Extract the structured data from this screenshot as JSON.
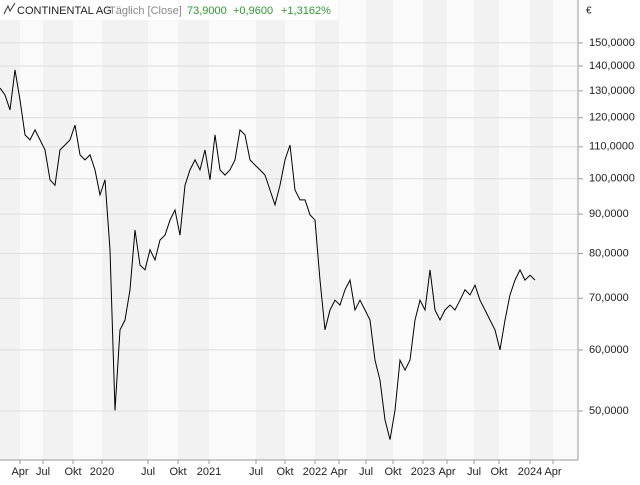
{
  "chart_data": {
    "type": "line",
    "title": "CONTINENTAL AG",
    "subtitle": "Täglich [Close]",
    "last_value": "73,9000",
    "change": "+0,9600",
    "change_percent": "+1,3162%",
    "y_label": "€",
    "y_axis_side": "right",
    "log_y": true,
    "grid": true,
    "xlim": [
      0,
      115.6
    ],
    "xticks": [
      {
        "value": 4,
        "label": "Apr"
      },
      {
        "value": 8.6,
        "label": "Jul"
      },
      {
        "value": 14.6,
        "label": "Okt"
      },
      {
        "value": 20.4,
        "label": "2020"
      },
      {
        "value": 29.6,
        "label": "Jul"
      },
      {
        "value": 35.6,
        "label": "Okt"
      },
      {
        "value": 41.8,
        "label": "2021"
      },
      {
        "value": 51.2,
        "label": "Jul"
      },
      {
        "value": 57,
        "label": "Okt"
      },
      {
        "value": 63,
        "label": "2022"
      },
      {
        "value": 67.8,
        "label": "Apr"
      },
      {
        "value": 73.2,
        "label": "Jul"
      },
      {
        "value": 78.6,
        "label": "Okt"
      },
      {
        "value": 84.6,
        "label": "2023"
      },
      {
        "value": 89.4,
        "label": "Apr"
      },
      {
        "value": 94.8,
        "label": "Jul"
      },
      {
        "value": 99.8,
        "label": "Okt"
      },
      {
        "value": 106,
        "label": "2024"
      },
      {
        "value": 110.6,
        "label": "Apr"
      }
    ],
    "ylim": [
      43.2,
      170.5
    ],
    "yticks": [
      {
        "value": 50,
        "label": "50,0000"
      },
      {
        "value": 60,
        "label": "60,0000"
      },
      {
        "value": 70,
        "label": "70,0000"
      },
      {
        "value": 80,
        "label": "80,0000"
      },
      {
        "value": 90,
        "label": "90,0000"
      },
      {
        "value": 100,
        "label": "100,0000"
      },
      {
        "value": 110,
        "label": "110,0000"
      },
      {
        "value": 120,
        "label": "120,0000"
      },
      {
        "value": 130,
        "label": "130,0000"
      },
      {
        "value": 140,
        "label": "140,0000"
      },
      {
        "value": 150,
        "label": "150,0000"
      }
    ],
    "series": [
      {
        "color": "#000000",
        "x": [
          0,
          1,
          2,
          3,
          4,
          5,
          6,
          7,
          8,
          9,
          10,
          11,
          12,
          13,
          14,
          15,
          16,
          17,
          18,
          19,
          20,
          21,
          22,
          23,
          24,
          25,
          26,
          27,
          28,
          29,
          30,
          31,
          32,
          33,
          34,
          35,
          36,
          37,
          38,
          39,
          40,
          41,
          42,
          43,
          44,
          45,
          46,
          47,
          48,
          49,
          50,
          51,
          52,
          53,
          54,
          55,
          56,
          57,
          58,
          59,
          60,
          61,
          62,
          63,
          64,
          65,
          66,
          67,
          68,
          69,
          70,
          71,
          72,
          73,
          74,
          75,
          76,
          77,
          78,
          79,
          80,
          81,
          82,
          83,
          84,
          85,
          86,
          87,
          88,
          89,
          90,
          91,
          92,
          93,
          94,
          95,
          96,
          97,
          98,
          99,
          100,
          101,
          102,
          103,
          104,
          105,
          106,
          107
        ],
        "values": [
          131.1,
          128.4,
          122.8,
          138.4,
          126.5,
          114.0,
          112.3,
          115.7,
          112.3,
          109.0,
          99.7,
          98.1,
          109.0,
          110.6,
          112.3,
          117.4,
          107.4,
          105.8,
          107.4,
          102.7,
          95.3,
          99.7,
          80.9,
          50.1,
          63.7,
          65.6,
          71.8,
          85.8,
          77.3,
          76.2,
          80.9,
          78.5,
          83.3,
          84.5,
          88.4,
          91.1,
          84.5,
          98.1,
          102.7,
          105.8,
          102.7,
          109.0,
          99.7,
          114.0,
          102.7,
          101.1,
          102.7,
          105.8,
          115.7,
          114.0,
          105.8,
          104.2,
          102.7,
          101.1,
          96.7,
          92.5,
          98.1,
          105.8,
          110.6,
          96.7,
          93.9,
          93.9,
          89.8,
          88.4,
          73.9,
          63.7,
          67.6,
          69.6,
          68.6,
          71.8,
          73.9,
          67.6,
          69.6,
          67.6,
          65.6,
          58.2,
          54.8,
          48.7,
          45.9,
          50.1,
          58.2,
          56.5,
          58.2,
          65.6,
          69.6,
          67.6,
          76.2,
          67.6,
          65.6,
          67.6,
          68.6,
          67.6,
          69.6,
          71.8,
          70.7,
          72.8,
          69.6,
          67.6,
          65.6,
          63.7,
          60.0,
          65.6,
          70.7,
          73.9,
          76.2,
          73.9,
          75.0,
          73.9
        ]
      }
    ]
  }
}
